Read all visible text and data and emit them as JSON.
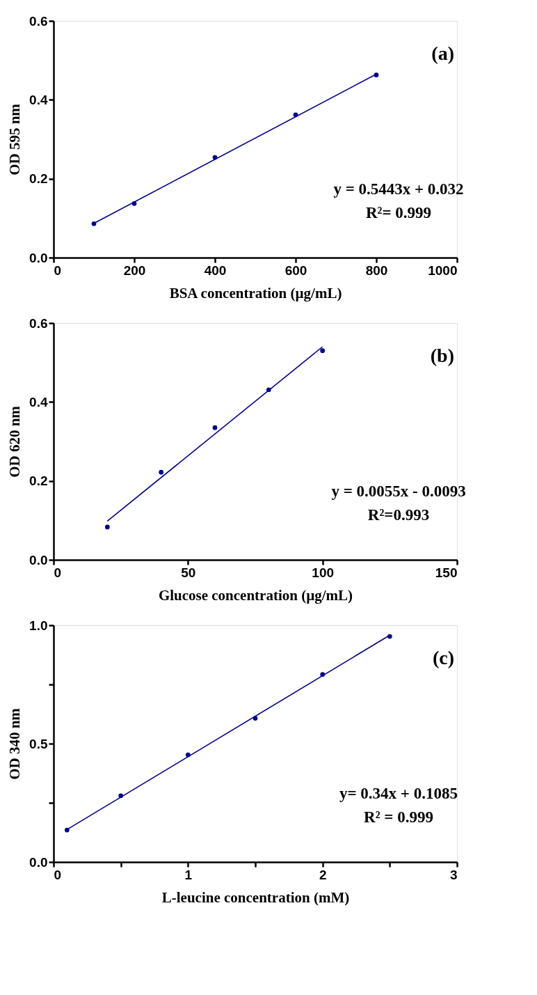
{
  "chart_data": [
    {
      "type": "scatter",
      "xlabel": "BSA concentration (µg/mL)",
      "ylabel": "OD 595 nm",
      "grid": false,
      "xlim": [
        0,
        1000
      ],
      "xticks": [
        {
          "value": 0,
          "label": "0"
        },
        {
          "value": 200,
          "label": "200"
        },
        {
          "value": 400,
          "label": "400"
        },
        {
          "value": 600,
          "label": "600"
        },
        {
          "value": 800,
          "label": "800"
        },
        {
          "value": 1000,
          "label": "1000"
        }
      ],
      "ylim": [
        0,
        0.6
      ],
      "yticks": [
        {
          "value": 0,
          "label": "0.0"
        },
        {
          "value": 0.2,
          "label": "0.2"
        },
        {
          "value": 0.4,
          "label": "0.4"
        },
        {
          "value": 0.6,
          "label": "0.6"
        }
      ],
      "series": [
        {
          "marker": "circle",
          "color": "#00008b",
          "x": [
            100,
            200,
            400,
            600,
            800
          ],
          "values": [
            0.086,
            0.137,
            0.254,
            0.362,
            0.463
          ]
        },
        {
          "type": "line",
          "marker": "none",
          "color": "#00008b",
          "x": [
            100,
            800
          ],
          "values": [
            0.087,
            0.465
          ]
        }
      ],
      "annotations": [
        "(a)",
        "y = 0.5443x + 0.032",
        "R²= 0.999"
      ]
    },
    {
      "type": "scatter",
      "xlabel": "Glucose concentration (µg/mL)",
      "ylabel": "OD 620 nm",
      "grid": false,
      "xlim": [
        0,
        150
      ],
      "xticks": [
        {
          "value": 0,
          "label": "0"
        },
        {
          "value": 50,
          "label": "50"
        },
        {
          "value": 100,
          "label": "100"
        },
        {
          "value": 150,
          "label": "150"
        }
      ],
      "ylim": [
        0,
        0.6
      ],
      "yticks": [
        {
          "value": 0,
          "label": "0.0"
        },
        {
          "value": 0.2,
          "label": "0.2"
        },
        {
          "value": 0.4,
          "label": "0.4"
        },
        {
          "value": 0.6,
          "label": "0.6"
        }
      ],
      "series": [
        {
          "marker": "circle",
          "color": "#00008b",
          "x": [
            20,
            40,
            60,
            80,
            100
          ],
          "values": [
            0.083,
            0.222,
            0.335,
            0.431,
            0.53
          ]
        },
        {
          "type": "line",
          "marker": "none",
          "color": "#00008b",
          "x": [
            20,
            100
          ],
          "values": [
            0.098,
            0.54
          ]
        }
      ],
      "annotations": [
        "(b)",
        "y = 0.0055x - 0.0093",
        "R²=0.993"
      ]
    },
    {
      "type": "scatter",
      "xlabel": "L-leucine concentration (mM)",
      "ylabel": "OD 340 nm",
      "grid": false,
      "xlim": [
        0,
        3
      ],
      "xticks": [
        {
          "value": 0,
          "label": "0"
        },
        {
          "value": 0.5,
          "label": null
        },
        {
          "value": 1,
          "label": "1"
        },
        {
          "value": 1.5,
          "label": null
        },
        {
          "value": 2,
          "label": "2"
        },
        {
          "value": 2.5,
          "label": null
        },
        {
          "value": 3,
          "label": "3"
        }
      ],
      "ylim": [
        0,
        1
      ],
      "yticks": [
        {
          "value": 0,
          "label": "0.0"
        },
        {
          "value": 0.25,
          "label": null
        },
        {
          "value": 0.5,
          "label": "0.5"
        },
        {
          "value": 0.75,
          "label": null
        },
        {
          "value": 1,
          "label": "1.0"
        }
      ],
      "series": [
        {
          "marker": "circle",
          "color": "#00008b",
          "x": [
            0.1,
            0.5,
            1,
            1.5,
            2,
            2.5
          ],
          "values": [
            0.135,
            0.28,
            0.453,
            0.607,
            0.792,
            0.953
          ]
        },
        {
          "type": "line",
          "marker": "none",
          "color": "#00008b",
          "x": [
            0.1,
            2.5
          ],
          "values": [
            0.137,
            0.958
          ]
        }
      ],
      "annotations": [
        "(c)",
        "y= 0.34x + 0.1085",
        "R² = 0.999"
      ]
    }
  ]
}
